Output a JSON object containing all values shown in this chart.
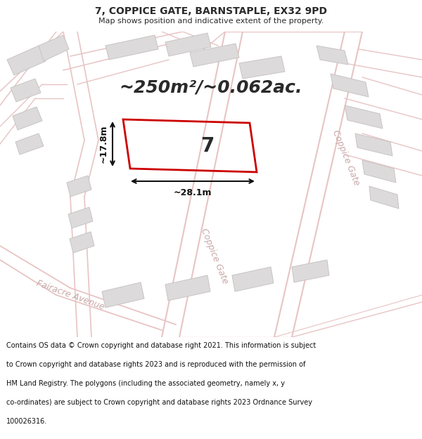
{
  "title_line1": "7, COPPICE GATE, BARNSTAPLE, EX32 9PD",
  "title_line2": "Map shows position and indicative extent of the property.",
  "area_text": "~250m²/~0.062ac.",
  "width_label": "~28.1m",
  "height_label": "~17.8m",
  "number_label": "7",
  "street_label_right": "Coppice Gate",
  "street_label_center": "Coppice Gate",
  "street_label_fairacre": "Fairacre Avenue",
  "footer_lines": [
    "Contains OS data © Crown copyright and database right 2021. This information is subject",
    "to Crown copyright and database rights 2023 and is reproduced with the permission of",
    "HM Land Registry. The polygons (including the associated geometry, namely x, y",
    "co-ordinates) are subject to Crown copyright and database rights 2023 Ordnance Survey",
    "100026316."
  ],
  "map_bg": "#f2f0f0",
  "road_color": "#e8c4c4",
  "building_fill": "#dcdada",
  "building_edge": "#c8c4c4",
  "plot_color": "#cc0000",
  "text_color": "#2a2a2a",
  "street_text_color": "#c8a8a8",
  "dim_color": "#111111",
  "footer_bg": "#ffffff",
  "title_bg": "#ffffff",
  "title_fontsize": 10,
  "subtitle_fontsize": 8,
  "area_fontsize": 18,
  "number_fontsize": 20,
  "street_fontsize": 9,
  "dim_fontsize": 9,
  "footer_fontsize": 7
}
